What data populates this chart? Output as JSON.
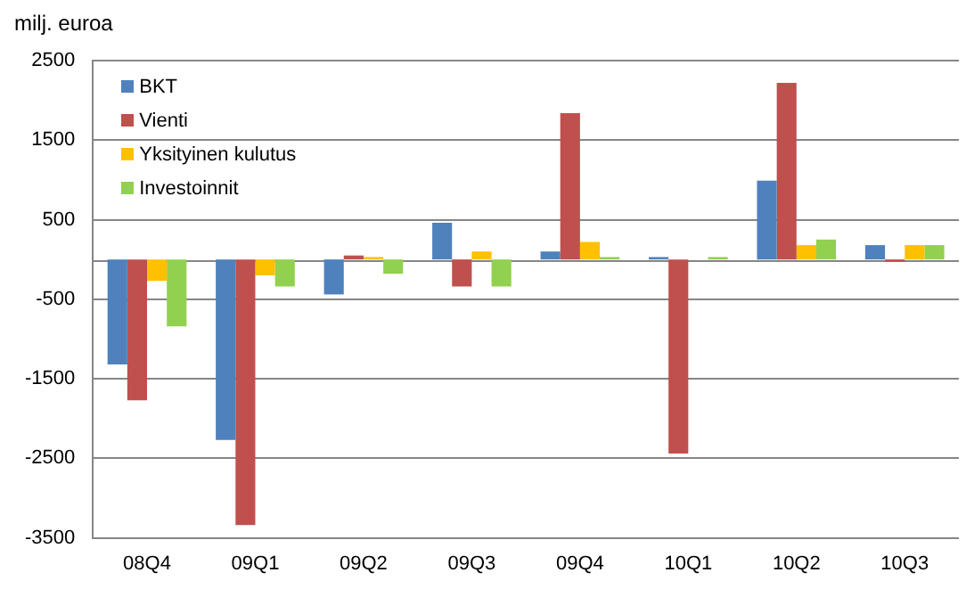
{
  "chart_data": {
    "type": "bar",
    "ylabel": "milj. euroa",
    "categories": [
      "08Q4",
      "09Q1",
      "09Q2",
      "09Q3",
      "09Q4",
      "10Q1",
      "10Q2",
      "10Q3"
    ],
    "series": [
      {
        "name": "BKT",
        "color": "#4f81bd",
        "values": [
          -1320,
          -2270,
          -440,
          460,
          100,
          30,
          990,
          180
        ]
      },
      {
        "name": "Vienti",
        "color": "#c0504d",
        "values": [
          -1770,
          -3340,
          50,
          -340,
          1840,
          -2440,
          2220,
          -30
        ]
      },
      {
        "name": "Yksityinen kulutus",
        "color": "#ffc000",
        "values": [
          -270,
          -200,
          30,
          100,
          220,
          0,
          180,
          180
        ]
      },
      {
        "name": "Investoinnit",
        "color": "#92d050",
        "values": [
          -840,
          -340,
          -180,
          -340,
          30,
          30,
          250,
          180
        ]
      }
    ],
    "ylim": [
      -3500,
      2500
    ],
    "yticks": [
      -3500,
      -2500,
      -1500,
      -500,
      500,
      1500,
      2500
    ],
    "grid": "y",
    "legend": "top left"
  }
}
